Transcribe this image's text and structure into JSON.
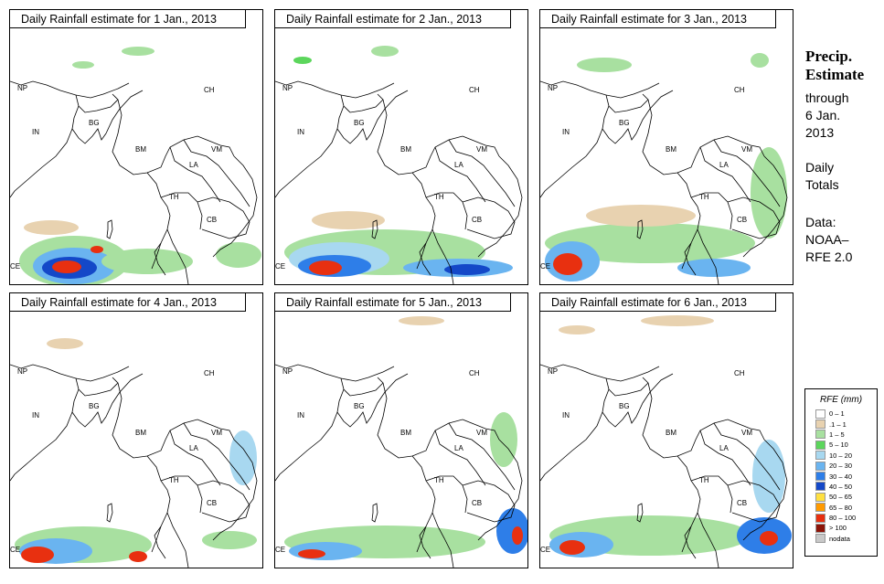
{
  "panels": [
    {
      "title": "Daily Rainfall estimate for  1 Jan., 2013",
      "rain": [
        {
          "cx": 70,
          "cy": 275,
          "rx": 60,
          "ry": 28,
          "level": "1-5"
        },
        {
          "cx": 70,
          "cy": 280,
          "rx": 45,
          "ry": 20,
          "level": "20-30"
        },
        {
          "cx": 65,
          "cy": 282,
          "rx": 30,
          "ry": 12,
          "level": "40-50"
        },
        {
          "cx": 62,
          "cy": 281,
          "rx": 16,
          "ry": 7,
          "level": "80-100"
        },
        {
          "cx": 95,
          "cy": 262,
          "rx": 7,
          "ry": 4,
          "level": "80-100"
        },
        {
          "cx": 150,
          "cy": 275,
          "rx": 50,
          "ry": 14,
          "level": "1-5"
        },
        {
          "cx": 250,
          "cy": 268,
          "rx": 25,
          "ry": 14,
          "level": "1-5"
        },
        {
          "cx": 45,
          "cy": 238,
          "rx": 30,
          "ry": 8,
          "level": ".1-1"
        },
        {
          "cx": 140,
          "cy": 45,
          "rx": 18,
          "ry": 5,
          "level": "1-5"
        },
        {
          "cx": 80,
          "cy": 60,
          "rx": 12,
          "ry": 4,
          "level": "1-5"
        }
      ]
    },
    {
      "title": "Daily Rainfall estimate for  2 Jan., 2013",
      "rain": [
        {
          "cx": 120,
          "cy": 265,
          "rx": 110,
          "ry": 25,
          "level": "1-5"
        },
        {
          "cx": 70,
          "cy": 272,
          "rx": 55,
          "ry": 18,
          "level": "10-20"
        },
        {
          "cx": 65,
          "cy": 280,
          "rx": 40,
          "ry": 12,
          "level": "30-40"
        },
        {
          "cx": 55,
          "cy": 282,
          "rx": 18,
          "ry": 8,
          "level": "80-100"
        },
        {
          "cx": 200,
          "cy": 282,
          "rx": 60,
          "ry": 10,
          "level": "20-30"
        },
        {
          "cx": 210,
          "cy": 284,
          "rx": 25,
          "ry": 6,
          "level": "40-50"
        },
        {
          "cx": 80,
          "cy": 230,
          "rx": 40,
          "ry": 10,
          "level": ".1-1"
        },
        {
          "cx": 120,
          "cy": 45,
          "rx": 15,
          "ry": 6,
          "level": "1-5"
        },
        {
          "cx": 30,
          "cy": 55,
          "rx": 10,
          "ry": 4,
          "level": "5-10"
        }
      ]
    },
    {
      "title": "Daily Rainfall estimate for  3 Jan., 2013",
      "rain": [
        {
          "cx": 120,
          "cy": 255,
          "rx": 115,
          "ry": 22,
          "level": "1-5"
        },
        {
          "cx": 35,
          "cy": 275,
          "rx": 30,
          "ry": 22,
          "level": "20-30"
        },
        {
          "cx": 30,
          "cy": 278,
          "rx": 16,
          "ry": 12,
          "level": "80-100"
        },
        {
          "cx": 190,
          "cy": 282,
          "rx": 40,
          "ry": 10,
          "level": "20-30"
        },
        {
          "cx": 250,
          "cy": 200,
          "rx": 20,
          "ry": 50,
          "level": "1-5"
        },
        {
          "cx": 110,
          "cy": 225,
          "rx": 60,
          "ry": 12,
          "level": ".1-1"
        },
        {
          "cx": 70,
          "cy": 60,
          "rx": 30,
          "ry": 8,
          "level": "1-5"
        },
        {
          "cx": 240,
          "cy": 55,
          "rx": 10,
          "ry": 8,
          "level": "1-5"
        }
      ]
    },
    {
      "title": "Daily Rainfall estimate for  4 Jan., 2013",
      "rain": [
        {
          "cx": 80,
          "cy": 275,
          "rx": 75,
          "ry": 20,
          "level": "1-5"
        },
        {
          "cx": 50,
          "cy": 282,
          "rx": 40,
          "ry": 14,
          "level": "20-30"
        },
        {
          "cx": 30,
          "cy": 286,
          "rx": 18,
          "ry": 9,
          "level": "80-100"
        },
        {
          "cx": 140,
          "cy": 288,
          "rx": 10,
          "ry": 6,
          "level": "80-100"
        },
        {
          "cx": 255,
          "cy": 180,
          "rx": 15,
          "ry": 30,
          "level": "10-20"
        },
        {
          "cx": 60,
          "cy": 55,
          "rx": 20,
          "ry": 6,
          "level": ".1-1"
        },
        {
          "cx": 240,
          "cy": 270,
          "rx": 30,
          "ry": 10,
          "level": "1-5"
        }
      ]
    },
    {
      "title": "Daily Rainfall estimate for  5 Jan., 2013",
      "rain": [
        {
          "cx": 120,
          "cy": 272,
          "rx": 110,
          "ry": 18,
          "level": "1-5"
        },
        {
          "cx": 55,
          "cy": 282,
          "rx": 40,
          "ry": 10,
          "level": "20-30"
        },
        {
          "cx": 40,
          "cy": 285,
          "rx": 15,
          "ry": 5,
          "level": "80-100"
        },
        {
          "cx": 260,
          "cy": 260,
          "rx": 18,
          "ry": 25,
          "level": "30-40"
        },
        {
          "cx": 265,
          "cy": 265,
          "rx": 6,
          "ry": 10,
          "level": "80-100"
        },
        {
          "cx": 250,
          "cy": 160,
          "rx": 15,
          "ry": 30,
          "level": "1-5"
        },
        {
          "cx": 160,
          "cy": 30,
          "rx": 25,
          "ry": 5,
          "level": ".1-1"
        }
      ]
    },
    {
      "title": "Daily Rainfall estimate for  6 Jan., 2013",
      "rain": [
        {
          "cx": 120,
          "cy": 265,
          "rx": 110,
          "ry": 22,
          "level": "1-5"
        },
        {
          "cx": 45,
          "cy": 275,
          "rx": 35,
          "ry": 14,
          "level": "20-30"
        },
        {
          "cx": 35,
          "cy": 278,
          "rx": 14,
          "ry": 8,
          "level": "80-100"
        },
        {
          "cx": 245,
          "cy": 265,
          "rx": 30,
          "ry": 20,
          "level": "30-40"
        },
        {
          "cx": 250,
          "cy": 268,
          "rx": 10,
          "ry": 8,
          "level": "80-100"
        },
        {
          "cx": 250,
          "cy": 200,
          "rx": 18,
          "ry": 40,
          "level": "10-20"
        },
        {
          "cx": 150,
          "cy": 30,
          "rx": 40,
          "ry": 6,
          "level": ".1-1"
        },
        {
          "cx": 40,
          "cy": 40,
          "rx": 20,
          "ry": 5,
          "level": ".1-1"
        }
      ]
    }
  ],
  "labels": {
    "np": "NP",
    "ch": "CH",
    "in": "IN",
    "bg": "BG",
    "bm": "BM",
    "vm": "VM",
    "la": "LA",
    "th": "TH",
    "cb": "CB",
    "ce": "CE"
  },
  "sidebar": {
    "title_line1": "Precip.",
    "title_line2": "Estimate",
    "through": "through",
    "date_line1": "6 Jan.",
    "date_line2": "2013",
    "daily_line1": "Daily",
    "daily_line2": "Totals",
    "data_line1": "Data:",
    "data_line2": "NOAA–",
    "data_line3": "RFE 2.0"
  },
  "legend": {
    "title": "RFE (mm)",
    "items": [
      {
        "label": "0 – 1",
        "color": "#ffffff"
      },
      {
        "label": ".1 – 1",
        "color": "#e8d2b0"
      },
      {
        "label": "1 – 5",
        "color": "#a8e0a0"
      },
      {
        "label": "5 – 10",
        "color": "#5cd65c"
      },
      {
        "label": "10 – 20",
        "color": "#a8d8f0"
      },
      {
        "label": "20 – 30",
        "color": "#6ab4f0"
      },
      {
        "label": "30 – 40",
        "color": "#2e7ee8"
      },
      {
        "label": "40 – 50",
        "color": "#1448c8"
      },
      {
        "label": "50 – 65",
        "color": "#ffe040"
      },
      {
        "label": "65 – 80",
        "color": "#ff9a00"
      },
      {
        "label": "80 – 100",
        "color": "#e83010"
      },
      {
        "label": "> 100",
        "color": "#8c1408"
      },
      {
        "label": "nodata",
        "color": "#c8c8c8"
      }
    ]
  }
}
